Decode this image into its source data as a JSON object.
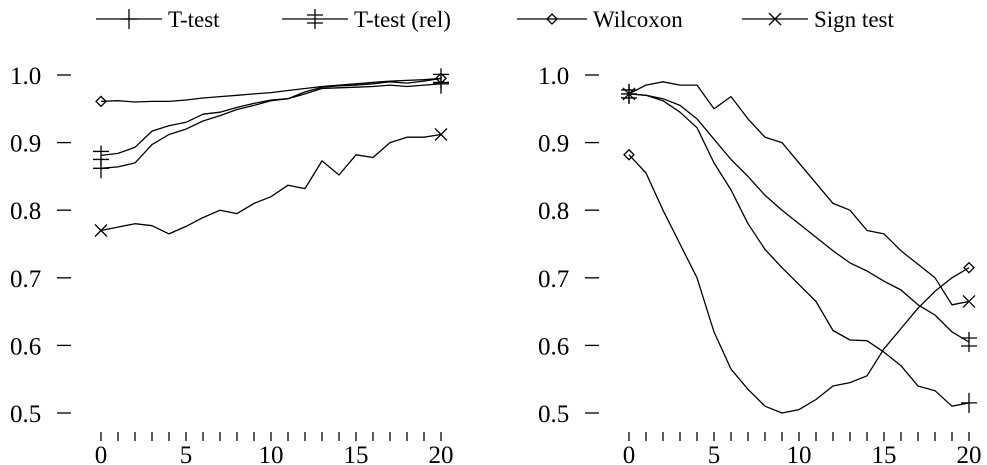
{
  "legend": [
    {
      "label": "T-test",
      "marker": "plus"
    },
    {
      "label": "T-test (rel)",
      "marker": "double-plus"
    },
    {
      "label": "Wilcoxon",
      "marker": "diamond"
    },
    {
      "label": "Sign test",
      "marker": "x"
    }
  ],
  "chart_data": [
    {
      "type": "line",
      "xlim": [
        0,
        20
      ],
      "ylim": [
        0.5,
        1.0
      ],
      "xticks": [
        "0",
        "5",
        "10",
        "15",
        "20"
      ],
      "yticks": [
        "0.5",
        "0.6",
        "0.7",
        "0.8",
        "0.9",
        "1.0"
      ],
      "grid": false,
      "x": [
        0,
        1,
        2,
        3,
        4,
        5,
        6,
        7,
        8,
        9,
        10,
        11,
        12,
        13,
        14,
        15,
        16,
        17,
        18,
        19,
        20
      ],
      "series": [
        {
          "name": "T-test",
          "marker": "plus",
          "values": [
            0.862,
            0.864,
            0.87,
            0.897,
            0.912,
            0.92,
            0.932,
            0.94,
            0.949,
            0.955,
            0.962,
            0.965,
            0.972,
            0.98,
            0.981,
            0.982,
            0.983,
            0.985,
            0.983,
            0.985,
            0.987
          ]
        },
        {
          "name": "T-test (rel)",
          "marker": "double-plus",
          "values": [
            0.881,
            0.884,
            0.893,
            0.917,
            0.925,
            0.93,
            0.942,
            0.945,
            0.952,
            0.958,
            0.963,
            0.965,
            0.975,
            0.982,
            0.984,
            0.985,
            0.987,
            0.99,
            0.988,
            0.991,
            0.995
          ]
        },
        {
          "name": "Wilcoxon",
          "marker": "diamond",
          "values": [
            0.961,
            0.962,
            0.96,
            0.961,
            0.961,
            0.963,
            0.966,
            0.968,
            0.97,
            0.972,
            0.974,
            0.977,
            0.98,
            0.983,
            0.985,
            0.987,
            0.989,
            0.991,
            0.992,
            0.993,
            0.995
          ]
        },
        {
          "name": "Sign test",
          "marker": "x",
          "values": [
            0.77,
            0.775,
            0.78,
            0.777,
            0.765,
            0.776,
            0.789,
            0.8,
            0.795,
            0.81,
            0.82,
            0.837,
            0.832,
            0.873,
            0.852,
            0.882,
            0.878,
            0.9,
            0.908,
            0.908,
            0.912
          ]
        }
      ]
    },
    {
      "type": "line",
      "xlim": [
        0,
        20
      ],
      "ylim": [
        0.5,
        1.0
      ],
      "xticks": [
        "0",
        "5",
        "10",
        "15",
        "20"
      ],
      "yticks": [
        "0.5",
        "0.6",
        "0.7",
        "0.8",
        "0.9",
        "1.0"
      ],
      "grid": false,
      "x": [
        0,
        1,
        2,
        3,
        4,
        5,
        6,
        7,
        8,
        9,
        10,
        11,
        12,
        13,
        14,
        15,
        16,
        17,
        18,
        19,
        20
      ],
      "series": [
        {
          "name": "T-test",
          "marker": "plus",
          "values": [
            0.972,
            0.97,
            0.962,
            0.945,
            0.922,
            0.87,
            0.83,
            0.78,
            0.742,
            0.715,
            0.69,
            0.665,
            0.622,
            0.608,
            0.607,
            0.59,
            0.57,
            0.54,
            0.533,
            0.51,
            0.515
          ]
        },
        {
          "name": "T-test (rel)",
          "marker": "double-plus",
          "values": [
            0.972,
            0.97,
            0.965,
            0.955,
            0.935,
            0.905,
            0.875,
            0.85,
            0.822,
            0.8,
            0.78,
            0.76,
            0.74,
            0.722,
            0.71,
            0.695,
            0.682,
            0.66,
            0.645,
            0.62,
            0.605
          ]
        },
        {
          "name": "Wilcoxon",
          "marker": "diamond",
          "values": [
            0.882,
            0.855,
            0.8,
            0.75,
            0.7,
            0.62,
            0.565,
            0.535,
            0.51,
            0.5,
            0.505,
            0.52,
            0.54,
            0.545,
            0.555,
            0.595,
            0.625,
            0.655,
            0.68,
            0.7,
            0.715
          ]
        },
        {
          "name": "Sign test",
          "marker": "x",
          "values": [
            0.972,
            0.985,
            0.99,
            0.985,
            0.985,
            0.95,
            0.968,
            0.935,
            0.908,
            0.9,
            0.87,
            0.84,
            0.81,
            0.8,
            0.77,
            0.765,
            0.74,
            0.72,
            0.7,
            0.66,
            0.665
          ]
        }
      ]
    }
  ]
}
